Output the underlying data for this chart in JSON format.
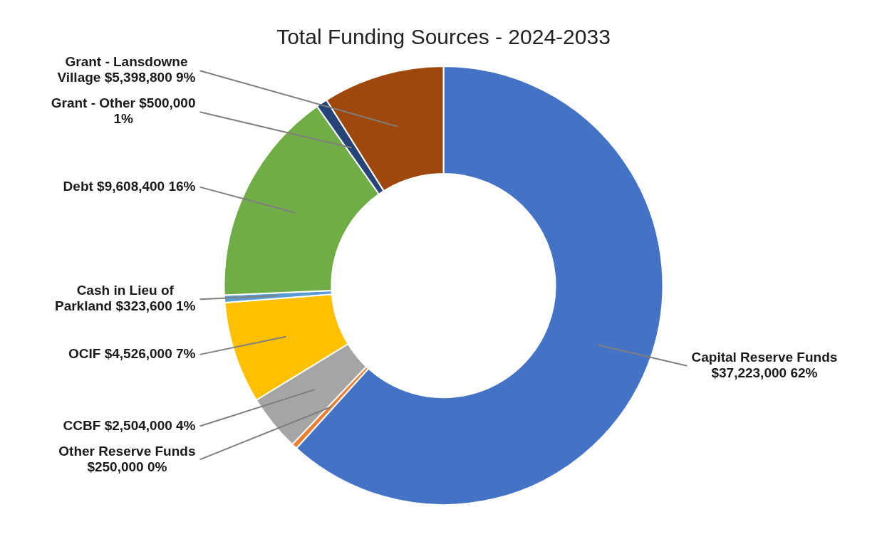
{
  "chart_data": {
    "type": "donut",
    "title": "Total Funding Sources - 2024-2033",
    "categories": [
      "Capital Reserve Funds",
      "Other Reserve Funds",
      "CCBF",
      "OCIF",
      "Cash in Lieu of Parkland",
      "Debt",
      "Grant - Other",
      "Grant - Lansdowne Village"
    ],
    "values": [
      37223000,
      250000,
      2504000,
      4526000,
      323600,
      9608400,
      500000,
      5398800
    ],
    "colors": [
      "#4472c4",
      "#ed7d31",
      "#a5a5a5",
      "#ffc000",
      "#5b9bd5",
      "#70ad47",
      "#264478",
      "#9e480e"
    ],
    "value_labels": [
      "$37,223,000 62%",
      "$250,000 0%",
      "$2,504,000 4%",
      "$4,526,000 7%",
      "$323,600 1%",
      "$9,608,400 16%",
      "$500,000 1%",
      "$5,398,800 9%"
    ],
    "legend": false
  }
}
